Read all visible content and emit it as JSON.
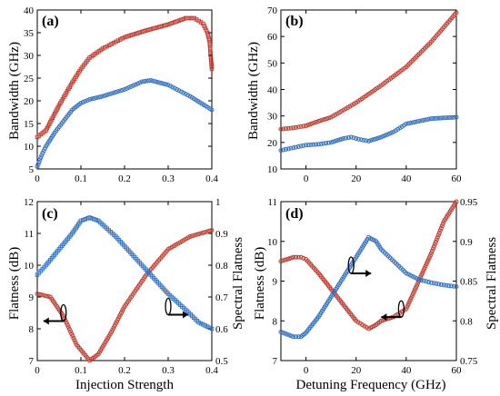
{
  "colors": {
    "red": "#c0392b",
    "blue": "#2e6fc2"
  },
  "chart_data": [
    {
      "type": "scatter",
      "panel": "(a)",
      "xlabel": "",
      "ylabel": "Bandwidth (GHz)",
      "xlim": [
        0,
        0.4
      ],
      "ylim": [
        5,
        40
      ],
      "xticks": [
        0,
        0.1,
        0.2,
        0.3,
        0.4
      ],
      "yticks": [
        5,
        10,
        15,
        20,
        25,
        30,
        35,
        40
      ],
      "xtick_labels": [
        "0",
        "0.1",
        "0.2",
        "0.3",
        "0.4"
      ],
      "ytick_labels": [
        "5",
        "10",
        "15",
        "20",
        "25",
        "30",
        "35",
        "40"
      ],
      "series": [
        {
          "color": "red",
          "marker": "square",
          "x": [
            0,
            0.02,
            0.05,
            0.08,
            0.1,
            0.12,
            0.15,
            0.2,
            0.25,
            0.3,
            0.32,
            0.34,
            0.36,
            0.38,
            0.39,
            0.395,
            0.4
          ],
          "y": [
            12,
            13.5,
            19,
            24,
            27,
            29.5,
            31.5,
            34,
            35.5,
            36.8,
            37.5,
            38.2,
            38.2,
            37,
            35,
            33,
            27
          ]
        },
        {
          "color": "blue",
          "marker": "circle",
          "x": [
            0,
            0.01,
            0.02,
            0.04,
            0.06,
            0.08,
            0.1,
            0.12,
            0.15,
            0.2,
            0.24,
            0.26,
            0.28,
            0.3,
            0.35,
            0.4
          ],
          "y": [
            5.5,
            8,
            10,
            13,
            15.5,
            18,
            19.5,
            20.3,
            21,
            22.5,
            24.2,
            24.5,
            24,
            23.5,
            21,
            18
          ]
        }
      ]
    },
    {
      "type": "scatter",
      "panel": "(b)",
      "xlabel": "",
      "ylabel": "Bandwidth (GHz)",
      "xlim": [
        -10,
        60
      ],
      "ylim": [
        10,
        70
      ],
      "xticks": [
        0,
        20,
        40,
        60
      ],
      "yticks": [
        10,
        20,
        30,
        40,
        50,
        60,
        70
      ],
      "xtick_labels": [
        "0",
        "20",
        "40",
        "60"
      ],
      "ytick_labels": [
        "10",
        "20",
        "30",
        "40",
        "50",
        "60",
        "70"
      ],
      "series": [
        {
          "color": "red",
          "marker": "circle",
          "x": [
            -10,
            -5,
            0,
            5,
            10,
            20,
            30,
            40,
            50,
            60
          ],
          "y": [
            25,
            25.5,
            26.3,
            28,
            29.5,
            35,
            41.5,
            48.5,
            58,
            69
          ]
        },
        {
          "color": "blue",
          "marker": "circle",
          "x": [
            -10,
            -5,
            0,
            5,
            10,
            15,
            18,
            22,
            25,
            30,
            35,
            40,
            50,
            60
          ],
          "y": [
            17,
            18,
            19,
            19.3,
            20,
            21.5,
            22,
            21,
            20.5,
            22,
            24,
            27,
            29,
            29.5
          ]
        }
      ]
    },
    {
      "type": "scatter",
      "panel": "(c)",
      "xlabel": "Injection Strength",
      "ylabel": "Flatness (dB)",
      "y2label": "Spectral Flatness",
      "xlim": [
        0,
        0.4
      ],
      "ylim": [
        7,
        12
      ],
      "y2lim": [
        0.5,
        1
      ],
      "xticks": [
        0,
        0.1,
        0.2,
        0.3,
        0.4
      ],
      "yticks": [
        7,
        8,
        9,
        10,
        11,
        12
      ],
      "y2ticks": [
        0.5,
        0.6,
        0.7,
        0.8,
        0.9,
        1
      ],
      "xtick_labels": [
        "0",
        "0.1",
        "0.2",
        "0.3",
        "0.4"
      ],
      "ytick_labels": [
        "7",
        "8",
        "9",
        "10",
        "11",
        "12"
      ],
      "y2tick_labels": [
        "0.5",
        "0.6",
        "0.7",
        "0.8",
        "0.9",
        "1"
      ],
      "series": [
        {
          "color": "red",
          "marker": "circle",
          "axis": "left",
          "x": [
            0,
            0.03,
            0.06,
            0.09,
            0.12,
            0.14,
            0.17,
            0.2,
            0.25,
            0.3,
            0.35,
            0.4
          ],
          "y": [
            9.1,
            9,
            8.4,
            7.5,
            7,
            7.2,
            7.9,
            8.7,
            9.7,
            10.5,
            10.9,
            11.1
          ]
        },
        {
          "color": "blue",
          "marker": "square",
          "axis": "right",
          "x": [
            0,
            0.02,
            0.05,
            0.08,
            0.1,
            0.12,
            0.14,
            0.18,
            0.22,
            0.26,
            0.3,
            0.34,
            0.37,
            0.4
          ],
          "y": [
            0.77,
            0.8,
            0.85,
            0.9,
            0.94,
            0.95,
            0.94,
            0.89,
            0.83,
            0.77,
            0.71,
            0.66,
            0.62,
            0.6
          ]
        }
      ],
      "annotations": [
        {
          "kind": "axis-arrow",
          "direction": "left",
          "at": [
            0.06,
            8.5
          ]
        },
        {
          "kind": "axis-arrow",
          "direction": "right",
          "at": [
            0.3,
            8.7
          ]
        }
      ]
    },
    {
      "type": "scatter",
      "panel": "(d)",
      "xlabel": "Detuning Frequency (GHz)",
      "ylabel": "Flatness (dB)",
      "y2label": "Spectral Flatness",
      "xlim": [
        -10,
        60
      ],
      "ylim": [
        7,
        11
      ],
      "y2lim": [
        0.75,
        0.95
      ],
      "xticks": [
        0,
        20,
        40,
        60
      ],
      "yticks": [
        7,
        8,
        9,
        10,
        11
      ],
      "y2ticks": [
        0.75,
        0.8,
        0.85,
        0.9,
        0.95
      ],
      "xtick_labels": [
        "0",
        "20",
        "40",
        "60"
      ],
      "ytick_labels": [
        "7",
        "8",
        "9",
        "10",
        "11"
      ],
      "y2tick_labels": [
        "0.75",
        "0.8",
        "0.85",
        "0.9",
        "0.95"
      ],
      "series": [
        {
          "color": "red",
          "marker": "circle",
          "axis": "left",
          "x": [
            -10,
            -5,
            -2,
            0,
            5,
            10,
            15,
            20,
            25,
            28,
            30,
            35,
            40,
            45,
            50,
            55,
            60
          ],
          "y": [
            9.5,
            9.6,
            9.6,
            9.55,
            9.2,
            8.8,
            8.4,
            8,
            7.8,
            7.9,
            8,
            8.1,
            8.3,
            9,
            9.7,
            10.5,
            11
          ]
        },
        {
          "color": "blue",
          "marker": "circle",
          "axis": "right",
          "x": [
            -10,
            -5,
            -2,
            0,
            5,
            10,
            15,
            20,
            25,
            28,
            30,
            35,
            40,
            45,
            50,
            55,
            60
          ],
          "y": [
            0.786,
            0.78,
            0.78,
            0.785,
            0.805,
            0.83,
            0.855,
            0.88,
            0.905,
            0.9,
            0.89,
            0.875,
            0.86,
            0.852,
            0.848,
            0.845,
            0.843
          ]
        }
      ],
      "annotations": [
        {
          "kind": "axis-arrow",
          "direction": "right",
          "at": [
            18,
            9.4
          ]
        },
        {
          "kind": "axis-arrow",
          "direction": "left",
          "at": [
            38,
            8.3
          ]
        }
      ]
    }
  ]
}
